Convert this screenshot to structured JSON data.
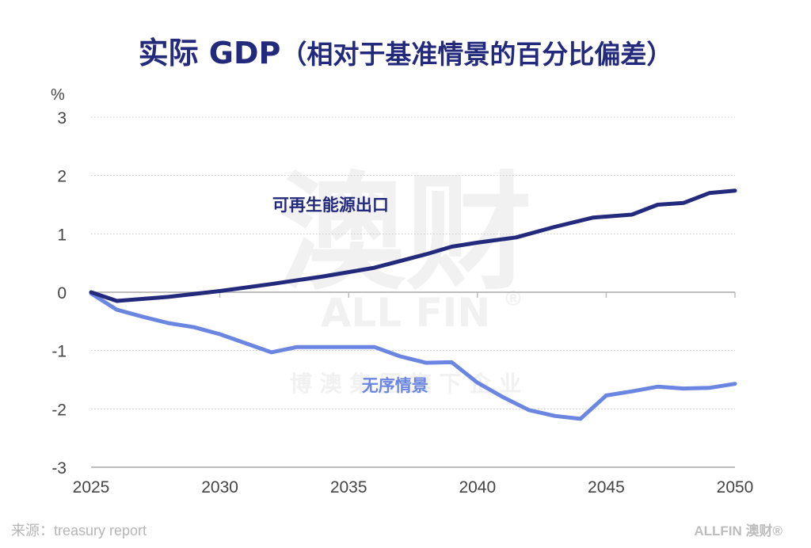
{
  "header": {
    "title_main": "实际 GDP",
    "title_sub": "（相对于基准情景的百分比偏差）"
  },
  "watermark": {
    "main": "澳财",
    "brand": "ALL FIN",
    "registered": "®",
    "tagline": "博 澳 集 团 旗 下 企 业"
  },
  "footer": {
    "source": "来源：treasury report",
    "brand": "ALLFIN 澳财®"
  },
  "colors": {
    "title": "#232a7c",
    "renewable": "#232a7c",
    "disorderly": "#6b86e0",
    "grid": "#c8c8c8",
    "axis": "#bdbdbd"
  },
  "chart_data": {
    "type": "line",
    "title": "实际 GDP（相对于基准情景的百分比偏差）",
    "xlabel": "",
    "ylabel": "%",
    "xlim": [
      2025,
      2050
    ],
    "ylim": [
      -3,
      3
    ],
    "x_ticks": [
      2025,
      2030,
      2035,
      2040,
      2045,
      2050
    ],
    "y_ticks": [
      3,
      2,
      1,
      0,
      -1,
      -2,
      -3
    ],
    "grid": true,
    "legend": "inline-labels",
    "series": [
      {
        "name": "可再生能源出口",
        "label_at": [
          2034.3,
          1.4
        ],
        "x": [
          2025,
          2026,
          2028,
          2030,
          2032,
          2034,
          2036,
          2038,
          2039,
          2040,
          2041.5,
          2043,
          2044.5,
          2046,
          2047,
          2048,
          2049,
          2050
        ],
        "values": [
          0.0,
          -0.15,
          -0.08,
          0.02,
          0.14,
          0.27,
          0.42,
          0.65,
          0.78,
          0.85,
          0.94,
          1.12,
          1.28,
          1.33,
          1.5,
          1.53,
          1.7,
          1.74
        ]
      },
      {
        "name": "无序情景",
        "label_at": [
          2036.8,
          -1.7
        ],
        "x": [
          2025,
          2026,
          2027,
          2028,
          2029,
          2030,
          2032,
          2033,
          2036,
          2037,
          2038,
          2039,
          2040,
          2041,
          2042,
          2043,
          2044,
          2045,
          2046,
          2047,
          2048,
          2049,
          2050
        ],
        "values": [
          -0.02,
          -0.3,
          -0.42,
          -0.53,
          -0.6,
          -0.72,
          -1.03,
          -0.94,
          -0.94,
          -1.1,
          -1.21,
          -1.2,
          -1.55,
          -1.8,
          -2.02,
          -2.12,
          -2.17,
          -1.77,
          -1.7,
          -1.62,
          -1.65,
          -1.64,
          -1.57
        ]
      }
    ]
  }
}
